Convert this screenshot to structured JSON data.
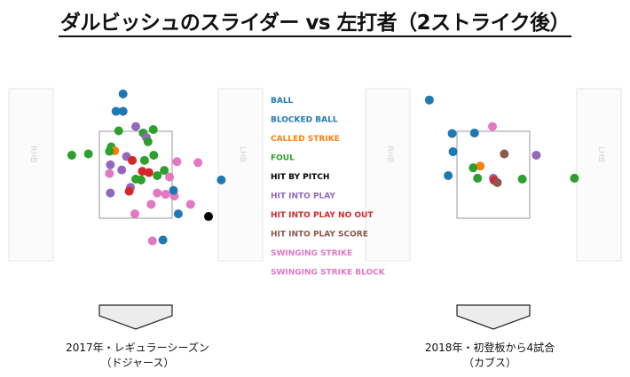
{
  "title": "ダルビッシュのスライダー vs 左打者（2ストライク後）",
  "legend": [
    {
      "label": "BALL",
      "color": "#1f77b4"
    },
    {
      "label": "BLOCKED BALL",
      "color": "#1f77b4"
    },
    {
      "label": "CALLED STRIKE",
      "color": "#ff7f0e"
    },
    {
      "label": "FOUL",
      "color": "#2ca02c"
    },
    {
      "label": "HIT BY PITCH",
      "color": "#000000"
    },
    {
      "label": "HIT INTO PLAY",
      "color": "#9467bd"
    },
    {
      "label": "HIT INTO PLAY NO OUT",
      "color": "#d62728"
    },
    {
      "label": "HIT INTO PLAY SCORE",
      "color": "#8c564b"
    },
    {
      "label": "SWINGING STRIKE",
      "color": "#e377c2"
    },
    {
      "label": "SWINGING STRIKE BLOCK",
      "color": "#e377c2"
    }
  ],
  "batter_box_labels": {
    "left": "RHB",
    "right": "LHB"
  },
  "captions": {
    "left_line1": "2017年・レギュラーシーズン",
    "left_line2": "（ドジャース）",
    "right_line1": "2018年・初登板から4試合",
    "right_line2": "（カブス）"
  },
  "chart_data": [
    {
      "type": "scatter",
      "name": "2017年・レギュラーシーズン（ドジャース）",
      "xlim": [
        -2.4,
        2.4
      ],
      "ylim": [
        -0.5,
        4.5
      ],
      "strike_zone": {
        "x": [
          -0.83,
          0.83
        ],
        "y": [
          1.5,
          3.5
        ]
      },
      "points": [
        {
          "x": -0.29,
          "y": 4.36,
          "result": "BALL"
        },
        {
          "x": -0.45,
          "y": 3.96,
          "result": "BALL"
        },
        {
          "x": -0.29,
          "y": 3.96,
          "result": "BALL"
        },
        {
          "x": 0.0,
          "y": 3.61,
          "result": "HIT INTO PLAY"
        },
        {
          "x": -0.39,
          "y": 3.51,
          "result": "FOUL"
        },
        {
          "x": 0.17,
          "y": 3.46,
          "result": "FOUL"
        },
        {
          "x": 0.4,
          "y": 3.54,
          "result": "FOUL"
        },
        {
          "x": 0.24,
          "y": 3.36,
          "result": "HIT INTO PLAY"
        },
        {
          "x": 0.28,
          "y": 3.26,
          "result": "FOUL"
        },
        {
          "x": -0.56,
          "y": 3.14,
          "result": "FOUL"
        },
        {
          "x": -0.48,
          "y": 3.05,
          "result": "CALLED STRIKE"
        },
        {
          "x": -0.6,
          "y": 3.04,
          "result": "FOUL"
        },
        {
          "x": -1.08,
          "y": 2.98,
          "result": "FOUL"
        },
        {
          "x": -1.46,
          "y": 2.95,
          "result": "FOUL"
        },
        {
          "x": 0.41,
          "y": 2.95,
          "result": "FOUL"
        },
        {
          "x": -0.21,
          "y": 2.92,
          "result": "HIT INTO PLAY"
        },
        {
          "x": -0.08,
          "y": 2.83,
          "result": "HIT INTO PLAY NO OUT"
        },
        {
          "x": 0.2,
          "y": 2.83,
          "result": "FOUL"
        },
        {
          "x": -0.58,
          "y": 2.73,
          "result": "HIT INTO PLAY"
        },
        {
          "x": 0.94,
          "y": 2.8,
          "result": "SWINGING STRIKE"
        },
        {
          "x": 1.42,
          "y": 2.78,
          "result": "SWINGING STRIKE"
        },
        {
          "x": -0.32,
          "y": 2.61,
          "result": "HIT INTO PLAY"
        },
        {
          "x": 0.15,
          "y": 2.58,
          "result": "HIT INTO PLAY NO OUT"
        },
        {
          "x": 0.3,
          "y": 2.55,
          "result": "HIT INTO PLAY NO OUT"
        },
        {
          "x": 0.65,
          "y": 2.6,
          "result": "FOUL"
        },
        {
          "x": -0.6,
          "y": 2.53,
          "result": "SWINGING STRIKE"
        },
        {
          "x": 0.49,
          "y": 2.48,
          "result": "FOUL"
        },
        {
          "x": 0.0,
          "y": 2.4,
          "result": "FOUL"
        },
        {
          "x": 0.12,
          "y": 2.38,
          "result": "FOUL"
        },
        {
          "x": 0.77,
          "y": 2.45,
          "result": "SWINGING STRIKE"
        },
        {
          "x": 1.95,
          "y": 2.38,
          "result": "BALL"
        },
        {
          "x": -0.12,
          "y": 2.21,
          "result": "HIT INTO PLAY"
        },
        {
          "x": -0.15,
          "y": 2.12,
          "result": "HIT INTO PLAY NO OUT"
        },
        {
          "x": -0.58,
          "y": 2.08,
          "result": "HIT INTO PLAY"
        },
        {
          "x": 0.49,
          "y": 2.08,
          "result": "SWINGING STRIKE"
        },
        {
          "x": 0.68,
          "y": 2.05,
          "result": "SWINGING STRIKE"
        },
        {
          "x": 0.88,
          "y": 2.01,
          "result": "SWINGING STRIKE"
        },
        {
          "x": 0.86,
          "y": 2.14,
          "result": "BALL"
        },
        {
          "x": 0.35,
          "y": 1.82,
          "result": "SWINGING STRIKE"
        },
        {
          "x": 1.25,
          "y": 1.82,
          "result": "SWINGING STRIKE"
        },
        {
          "x": -0.02,
          "y": 1.6,
          "result": "SWINGING STRIKE"
        },
        {
          "x": 0.97,
          "y": 1.6,
          "result": "BALL"
        },
        {
          "x": 0.38,
          "y": 0.98,
          "result": "SWINGING STRIKE"
        },
        {
          "x": 1.66,
          "y": 1.54,
          "result": "HIT BY PITCH"
        },
        {
          "x": 0.62,
          "y": 1.0,
          "result": "BALL"
        }
      ]
    },
    {
      "type": "scatter",
      "name": "2018年・初登板から4試合（カブス）",
      "xlim": [
        -2.4,
        2.4
      ],
      "ylim": [
        -0.5,
        4.5
      ],
      "strike_zone": {
        "x": [
          -0.83,
          0.83
        ],
        "y": [
          1.5,
          3.5
        ]
      },
      "points": [
        {
          "x": -1.46,
          "y": 4.22,
          "result": "BALL"
        },
        {
          "x": -0.02,
          "y": 3.61,
          "result": "SWINGING STRIKE"
        },
        {
          "x": -0.94,
          "y": 3.45,
          "result": "BALL"
        },
        {
          "x": -0.43,
          "y": 3.46,
          "result": "BALL"
        },
        {
          "x": -0.92,
          "y": 3.03,
          "result": "BALL"
        },
        {
          "x": 0.25,
          "y": 2.98,
          "result": "HIT INTO PLAY SCORE"
        },
        {
          "x": 0.98,
          "y": 2.95,
          "result": "HIT INTO PLAY"
        },
        {
          "x": -0.3,
          "y": 2.7,
          "result": "CALLED STRIKE"
        },
        {
          "x": -0.46,
          "y": 2.66,
          "result": "FOUL"
        },
        {
          "x": -1.03,
          "y": 2.48,
          "result": "BALL"
        },
        {
          "x": -0.36,
          "y": 2.42,
          "result": "FOUL"
        },
        {
          "x": 0.0,
          "y": 2.42,
          "result": "HIT INTO PLAY"
        },
        {
          "x": 0.02,
          "y": 2.37,
          "result": "HIT INTO PLAY NO OUT"
        },
        {
          "x": 0.09,
          "y": 2.32,
          "result": "HIT INTO PLAY SCORE"
        },
        {
          "x": 0.66,
          "y": 2.4,
          "result": "FOUL"
        },
        {
          "x": 1.85,
          "y": 2.42,
          "result": "FOUL"
        }
      ]
    }
  ]
}
